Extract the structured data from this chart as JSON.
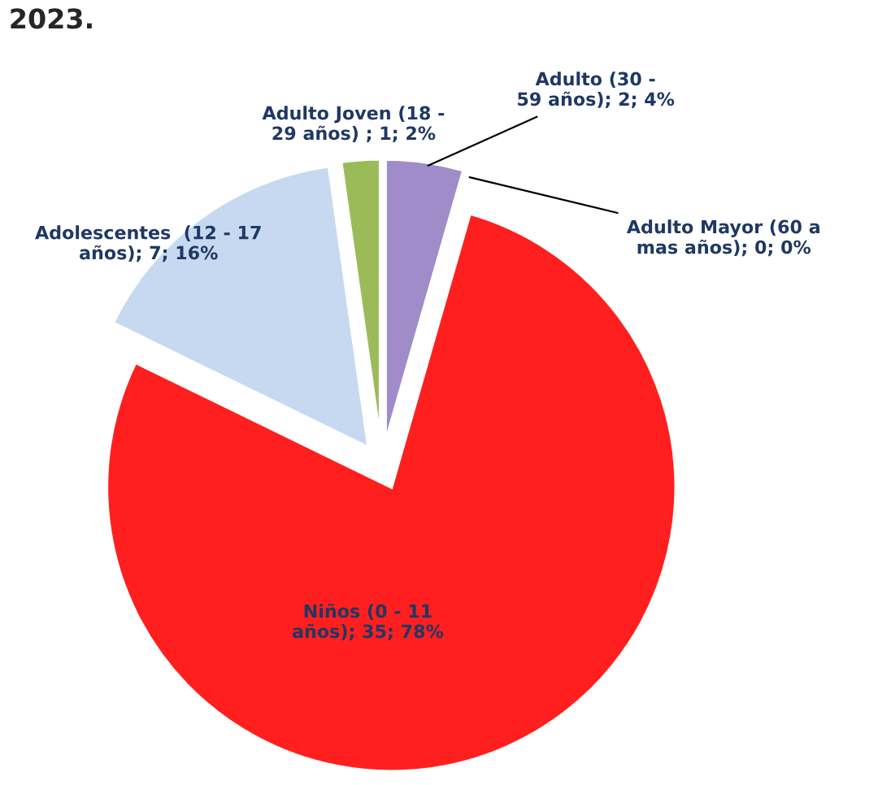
{
  "chart_data": {
    "type": "pie",
    "title": "2023.",
    "categories": [
      "Niños (0 - 11 años)",
      "Adolescentes  (12 - 17 años)",
      "Adulto Joven (18 - 29 años)",
      "Adulto (30 - 59 años)",
      "Adulto Mayor (60 a mas años)"
    ],
    "values": [
      35,
      7,
      1,
      2,
      0
    ],
    "value_labels": [
      "; 35; 78%",
      "; 7; 16%",
      " ; 1; 2%",
      "; 2; 4%",
      "; 0; 0%"
    ],
    "colors": [
      "#ff1f1f",
      "#c6d9f0",
      "#9bbb59",
      "#a08cc8",
      "#4f81bd"
    ],
    "legend": false
  }
}
